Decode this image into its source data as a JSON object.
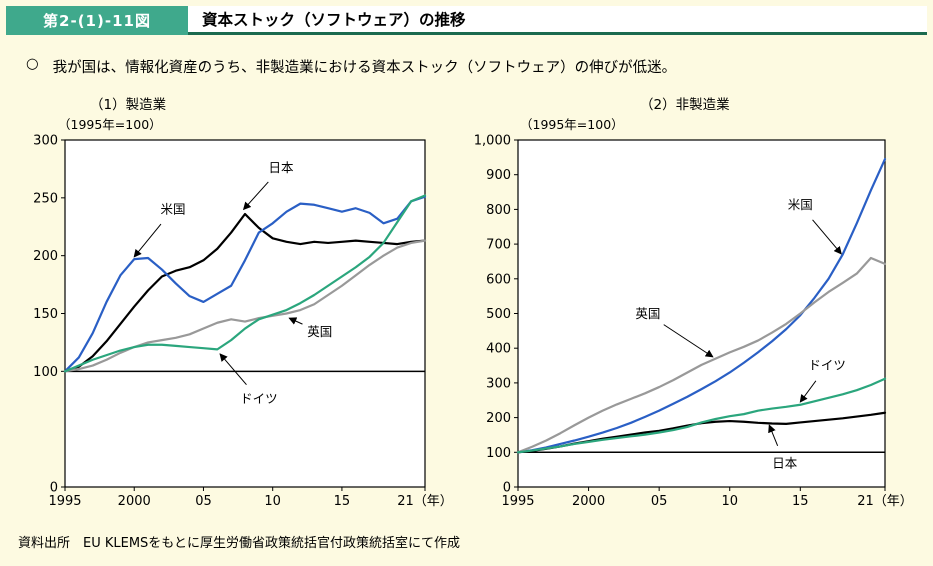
{
  "header": {
    "figure_label": "第2-(1)-11図",
    "title": "資本ストック（ソフトウェア）の推移",
    "accent_green": "#3FA98C",
    "underline_green": "#1B6A4F"
  },
  "lead": {
    "bullet": "○",
    "text": "我が国は、情報化資産のうち、非製造業における資本ストック（ソフトウェア）の伸びが低迷。"
  },
  "footer": {
    "source": "資料出所　EU KLEMSをもとに厚生労働省政策統括官付政策統括室にて作成"
  },
  "chart_data": [
    {
      "type": "line",
      "title": "（1）製造業",
      "unit_label": "（1995年=100）",
      "xlim": [
        1995,
        2021
      ],
      "ylim": [
        0,
        300
      ],
      "baseline": 100,
      "grid": false,
      "legend": "none (arrow annotations)",
      "x": [
        1995,
        1996,
        1997,
        1998,
        1999,
        2000,
        2001,
        2002,
        2003,
        2004,
        2005,
        2006,
        2007,
        2008,
        2009,
        2010,
        2011,
        2012,
        2013,
        2014,
        2015,
        2016,
        2017,
        2018,
        2019,
        2020,
        2021
      ],
      "x_ticks": [
        {
          "v": 1995,
          "label": "1995"
        },
        {
          "v": 2000,
          "label": "2000"
        },
        {
          "v": 2005,
          "label": "05"
        },
        {
          "v": 2010,
          "label": "10"
        },
        {
          "v": 2015,
          "label": "15"
        },
        {
          "v": 2021,
          "label": "21（年）"
        }
      ],
      "y_ticks": [
        {
          "v": 0,
          "label": "0"
        },
        {
          "v": 100,
          "label": "100"
        },
        {
          "v": 150,
          "label": "150"
        },
        {
          "v": 200,
          "label": "200"
        },
        {
          "v": 250,
          "label": "250"
        },
        {
          "v": 300,
          "label": "300"
        }
      ],
      "series": [
        {
          "name": "日本",
          "color": "#000000",
          "values": [
            100,
            104,
            113,
            126,
            141,
            156,
            170,
            182,
            187,
            190,
            196,
            206,
            220,
            236,
            224,
            215,
            212,
            210,
            212,
            211,
            212,
            213,
            212,
            211,
            210,
            212,
            213
          ]
        },
        {
          "name": "米国",
          "color": "#2A5FC5",
          "values": [
            100,
            112,
            133,
            160,
            183,
            197,
            198,
            188,
            176,
            165,
            160,
            167,
            174,
            196,
            220,
            228,
            238,
            245,
            244,
            241,
            238,
            241,
            237,
            228,
            232,
            247,
            251
          ]
        },
        {
          "name": "英国",
          "color": "#999999",
          "values": [
            100,
            102,
            105,
            110,
            116,
            121,
            125,
            127,
            129,
            132,
            137,
            142,
            145,
            143,
            146,
            148,
            150,
            153,
            158,
            166,
            174,
            183,
            192,
            200,
            207,
            211,
            213
          ]
        },
        {
          "name": "ドイツ",
          "color": "#2BA67D",
          "values": [
            100,
            105,
            110,
            114,
            118,
            121,
            123,
            123,
            122,
            121,
            120,
            119,
            127,
            137,
            145,
            149,
            153,
            159,
            166,
            174,
            182,
            190,
            199,
            211,
            229,
            247,
            252
          ]
        }
      ],
      "annotations": [
        {
          "label": "米国",
          "lx": 2002.8,
          "ly": 240,
          "tx": 2000.0,
          "ty": 199
        },
        {
          "label": "日本",
          "lx": 2010.6,
          "ly": 276,
          "tx": 2007.9,
          "ty": 240
        },
        {
          "label": "英国",
          "lx": 2013.4,
          "ly": 134,
          "tx": 2011.2,
          "ty": 146
        },
        {
          "label": "ドイツ",
          "lx": 2009.0,
          "ly": 76,
          "tx": 2006.2,
          "ty": 115
        }
      ]
    },
    {
      "type": "line",
      "title": "（2）非製造業",
      "unit_label": "（1995年=100）",
      "xlim": [
        1995,
        2021
      ],
      "ylim": [
        0,
        1000
      ],
      "baseline": 100,
      "grid": false,
      "legend": "none (arrow annotations)",
      "x": [
        1995,
        1996,
        1997,
        1998,
        1999,
        2000,
        2001,
        2002,
        2003,
        2004,
        2005,
        2006,
        2007,
        2008,
        2009,
        2010,
        2011,
        2012,
        2013,
        2014,
        2015,
        2016,
        2017,
        2018,
        2019,
        2020,
        2021
      ],
      "x_ticks": [
        {
          "v": 1995,
          "label": "1995"
        },
        {
          "v": 2000,
          "label": "2000"
        },
        {
          "v": 2005,
          "label": "05"
        },
        {
          "v": 2010,
          "label": "10"
        },
        {
          "v": 2015,
          "label": "15"
        },
        {
          "v": 2021,
          "label": "21（年）"
        }
      ],
      "y_ticks": [
        {
          "v": 0,
          "label": "0"
        },
        {
          "v": 100,
          "label": "100"
        },
        {
          "v": 200,
          "label": "200"
        },
        {
          "v": 300,
          "label": "300"
        },
        {
          "v": 400,
          "label": "400"
        },
        {
          "v": 500,
          "label": "500"
        },
        {
          "v": 600,
          "label": "600"
        },
        {
          "v": 700,
          "label": "700"
        },
        {
          "v": 800,
          "label": "800"
        },
        {
          "v": 900,
          "label": "900"
        },
        {
          "v": 1000,
          "label": "1,000"
        }
      ],
      "series": [
        {
          "name": "日本",
          "color": "#000000",
          "values": [
            100,
            104,
            110,
            117,
            125,
            132,
            139,
            145,
            151,
            157,
            162,
            169,
            177,
            184,
            188,
            190,
            188,
            185,
            183,
            182,
            186,
            190,
            194,
            198,
            203,
            208,
            214
          ]
        },
        {
          "name": "米国",
          "color": "#2A5FC5",
          "values": [
            100,
            106,
            114,
            124,
            134,
            145,
            157,
            170,
            185,
            202,
            220,
            240,
            260,
            282,
            305,
            330,
            358,
            388,
            420,
            455,
            495,
            545,
            600,
            670,
            760,
            855,
            945
          ]
        },
        {
          "name": "英国",
          "color": "#999999",
          "values": [
            100,
            116,
            134,
            155,
            178,
            200,
            220,
            238,
            254,
            270,
            288,
            308,
            330,
            352,
            370,
            388,
            404,
            422,
            445,
            470,
            500,
            532,
            562,
            588,
            615,
            660,
            643
          ]
        },
        {
          "name": "ドイツ",
          "color": "#2BA67D",
          "values": [
            100,
            105,
            111,
            117,
            124,
            130,
            136,
            141,
            146,
            151,
            157,
            164,
            173,
            186,
            196,
            204,
            210,
            220,
            226,
            231,
            237,
            247,
            257,
            267,
            279,
            294,
            312
          ]
        }
      ],
      "annotations": [
        {
          "label": "米国",
          "lx": 2015.0,
          "ly": 812,
          "tx": 2017.9,
          "ty": 672
        },
        {
          "label": "英国",
          "lx": 2004.2,
          "ly": 498,
          "tx": 2008.8,
          "ty": 375
        },
        {
          "label": "ドイツ",
          "lx": 2016.9,
          "ly": 350,
          "tx": 2015.0,
          "ty": 245
        },
        {
          "label": "日本",
          "lx": 2013.9,
          "ly": 68,
          "tx": 2012.8,
          "ty": 178
        }
      ]
    }
  ]
}
